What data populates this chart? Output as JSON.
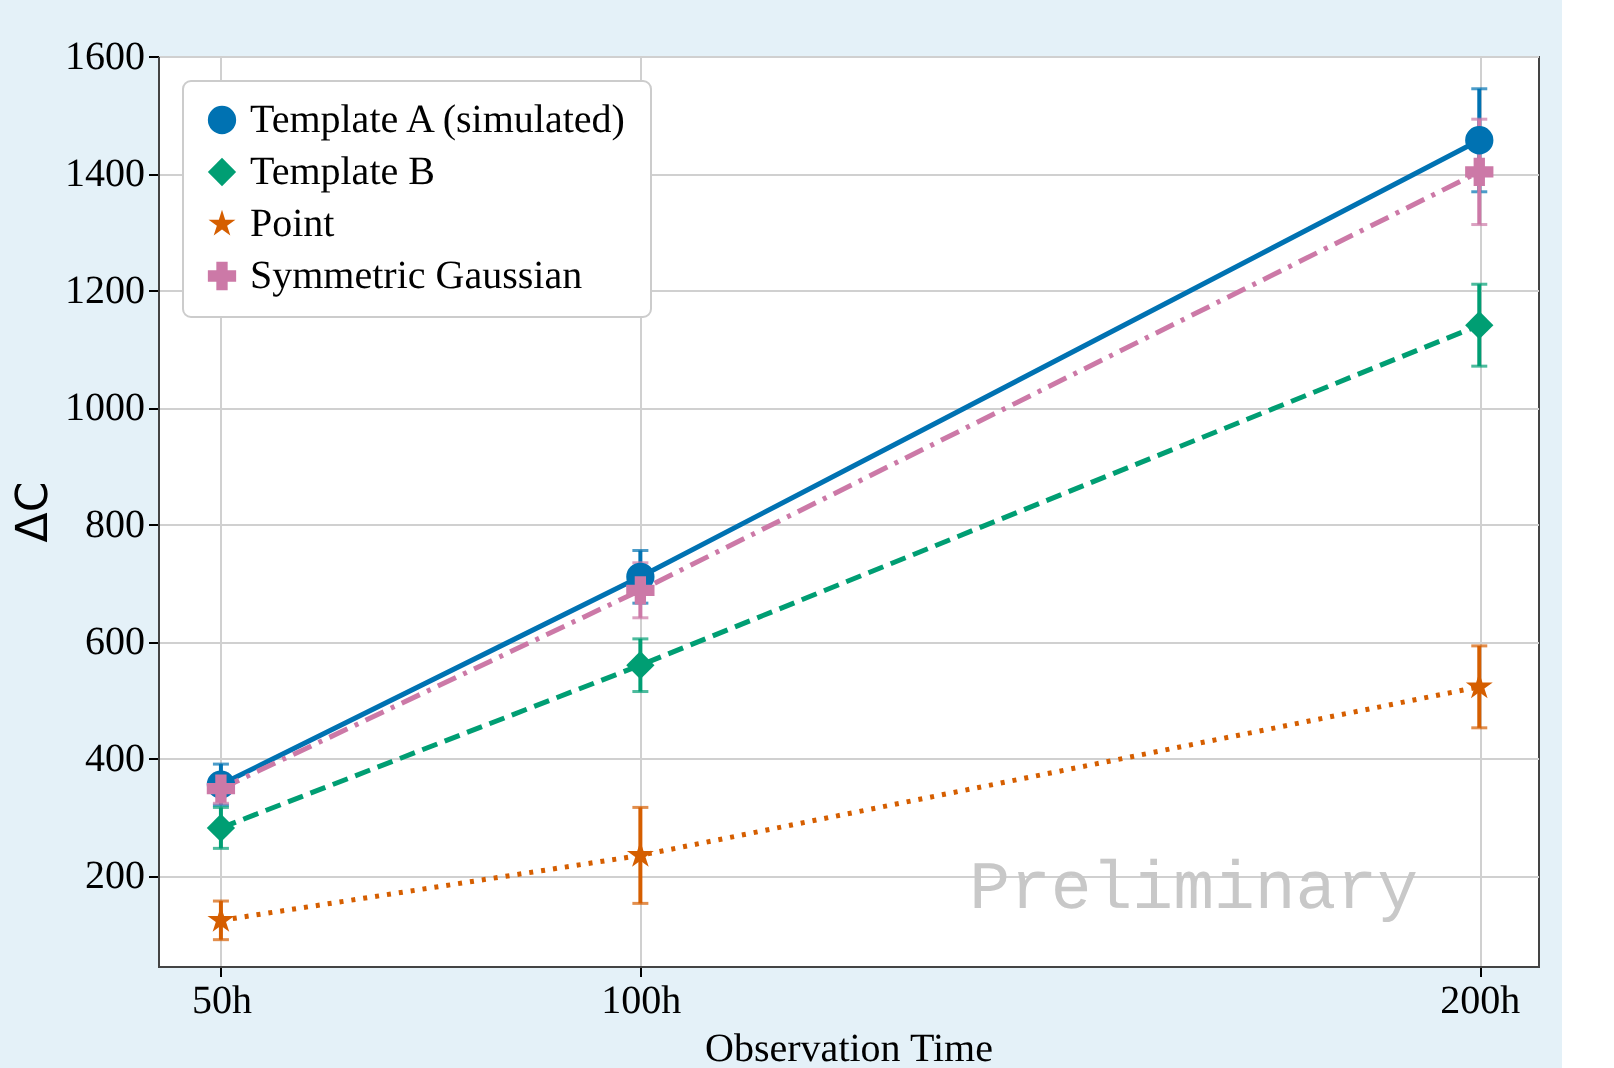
{
  "chart_data": {
    "type": "line",
    "xlabel": "Observation Time",
    "ylabel": "ΔC",
    "x": [
      50,
      100,
      200
    ],
    "xlim": [
      42.5,
      207
    ],
    "xticks": [
      {
        "value": 50,
        "label": "50h"
      },
      {
        "value": 100,
        "label": "100h"
      },
      {
        "value": 200,
        "label": "200h"
      }
    ],
    "ylim": [
      45,
      1600
    ],
    "yticks": [
      200,
      400,
      600,
      800,
      1000,
      1200,
      1400,
      1600
    ],
    "grid": true,
    "legend": "top left",
    "series": [
      {
        "name": "Template A (simulated)",
        "color": "#0072b2",
        "values": [
          355,
          710,
          1456
        ],
        "errors": [
          35,
          45,
          88
        ],
        "marker": "circle",
        "line_style": "solid"
      },
      {
        "name": "Template B",
        "color": "#009e73",
        "values": [
          281,
          559,
          1140
        ],
        "errors": [
          35,
          45,
          70
        ],
        "marker": "diamond",
        "line_style": "dashed"
      },
      {
        "name": "Point",
        "color": "#d55e00",
        "values": [
          123,
          234,
          522
        ],
        "errors": [
          33,
          82,
          70
        ],
        "marker": "star",
        "line_style": "dotted"
      },
      {
        "name": "Symmetric Gaussian",
        "color": "#cc79a7",
        "values": [
          348,
          687,
          1402
        ],
        "errors": [
          25,
          47,
          90
        ],
        "marker": "cross",
        "line_style": "dashdot"
      }
    ],
    "annotations": [
      "Preliminary"
    ]
  }
}
